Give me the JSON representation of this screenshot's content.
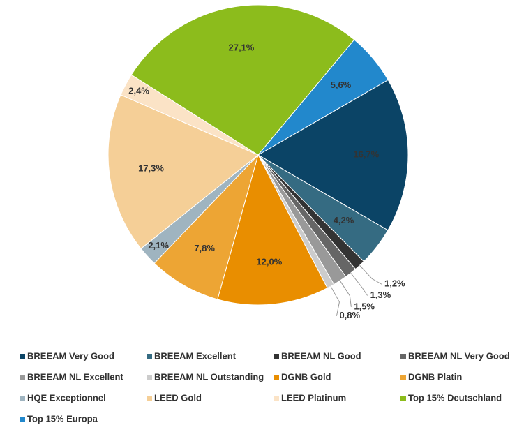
{
  "chart_data": {
    "type": "pie",
    "categories": [
      "BREEAM Very Good",
      "BREEAM Excellent",
      "BREEAM NL Good",
      "BREEAM NL Very Good",
      "BREEAM NL Excellent",
      "BREEAM NL Outstanding",
      "DGNB Gold",
      "DGNB Platin",
      "HQE Exceptionnel",
      "LEED Gold",
      "LEED Platinum",
      "Top 15% Deutschland",
      "Top 15% Europa"
    ],
    "values": [
      16.7,
      4.2,
      1.2,
      1.3,
      1.5,
      0.8,
      12.0,
      7.8,
      2.1,
      17.3,
      2.4,
      27.1,
      5.6
    ],
    "value_labels": [
      "16,7%",
      "4,2%",
      "1,2%",
      "1,3%",
      "1,5%",
      "0,8%",
      "12,0%",
      "7,8%",
      "2,1%",
      "17,3%",
      "2,4%",
      "27,1%",
      "5,6%"
    ],
    "colors": [
      "#0b4466",
      "#356b82",
      "#333333",
      "#666666",
      "#999999",
      "#cccccc",
      "#e98e00",
      "#eda534",
      "#9fb4c0",
      "#f5cf97",
      "#fbe3c6",
      "#8cbc1c",
      "#2288cc"
    ],
    "legend": "bottom"
  }
}
